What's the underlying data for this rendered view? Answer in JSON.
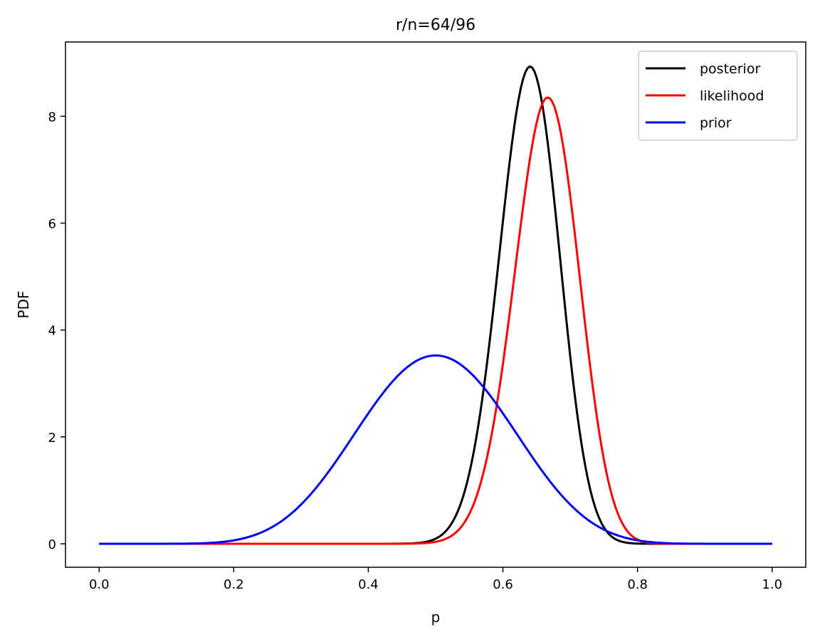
{
  "chart_data": {
    "type": "line",
    "title": "r/n=64/96",
    "xlabel": "p",
    "ylabel": "PDF",
    "xlim": [
      -0.05,
      1.05
    ],
    "ylim": [
      -0.44,
      9.39
    ],
    "xticks": [
      0.0,
      0.2,
      0.4,
      0.6,
      0.8,
      1.0
    ],
    "xtick_labels": [
      "0.0",
      "0.2",
      "0.4",
      "0.6",
      "0.8",
      "1.0"
    ],
    "yticks": [
      0,
      2,
      4,
      6,
      8
    ],
    "ytick_labels": [
      "0",
      "2",
      "4",
      "6",
      "8"
    ],
    "grid": false,
    "legend_position": "top-right",
    "x_range": [
      0,
      1
    ],
    "series": [
      {
        "name": "posterior",
        "color": "#000000",
        "distribution": "beta",
        "a": 74,
        "b": 42,
        "mode_x": 0.64,
        "peak_y": 8.9
      },
      {
        "name": "likelihood",
        "color": "#ff0000",
        "distribution": "beta",
        "a": 65,
        "b": 33,
        "mode_x": 0.667,
        "peak_y": 8.33
      },
      {
        "name": "prior",
        "color": "#0000ff",
        "distribution": "beta",
        "a": 10,
        "b": 10,
        "mode_x": 0.5,
        "peak_y": 3.52
      }
    ]
  }
}
